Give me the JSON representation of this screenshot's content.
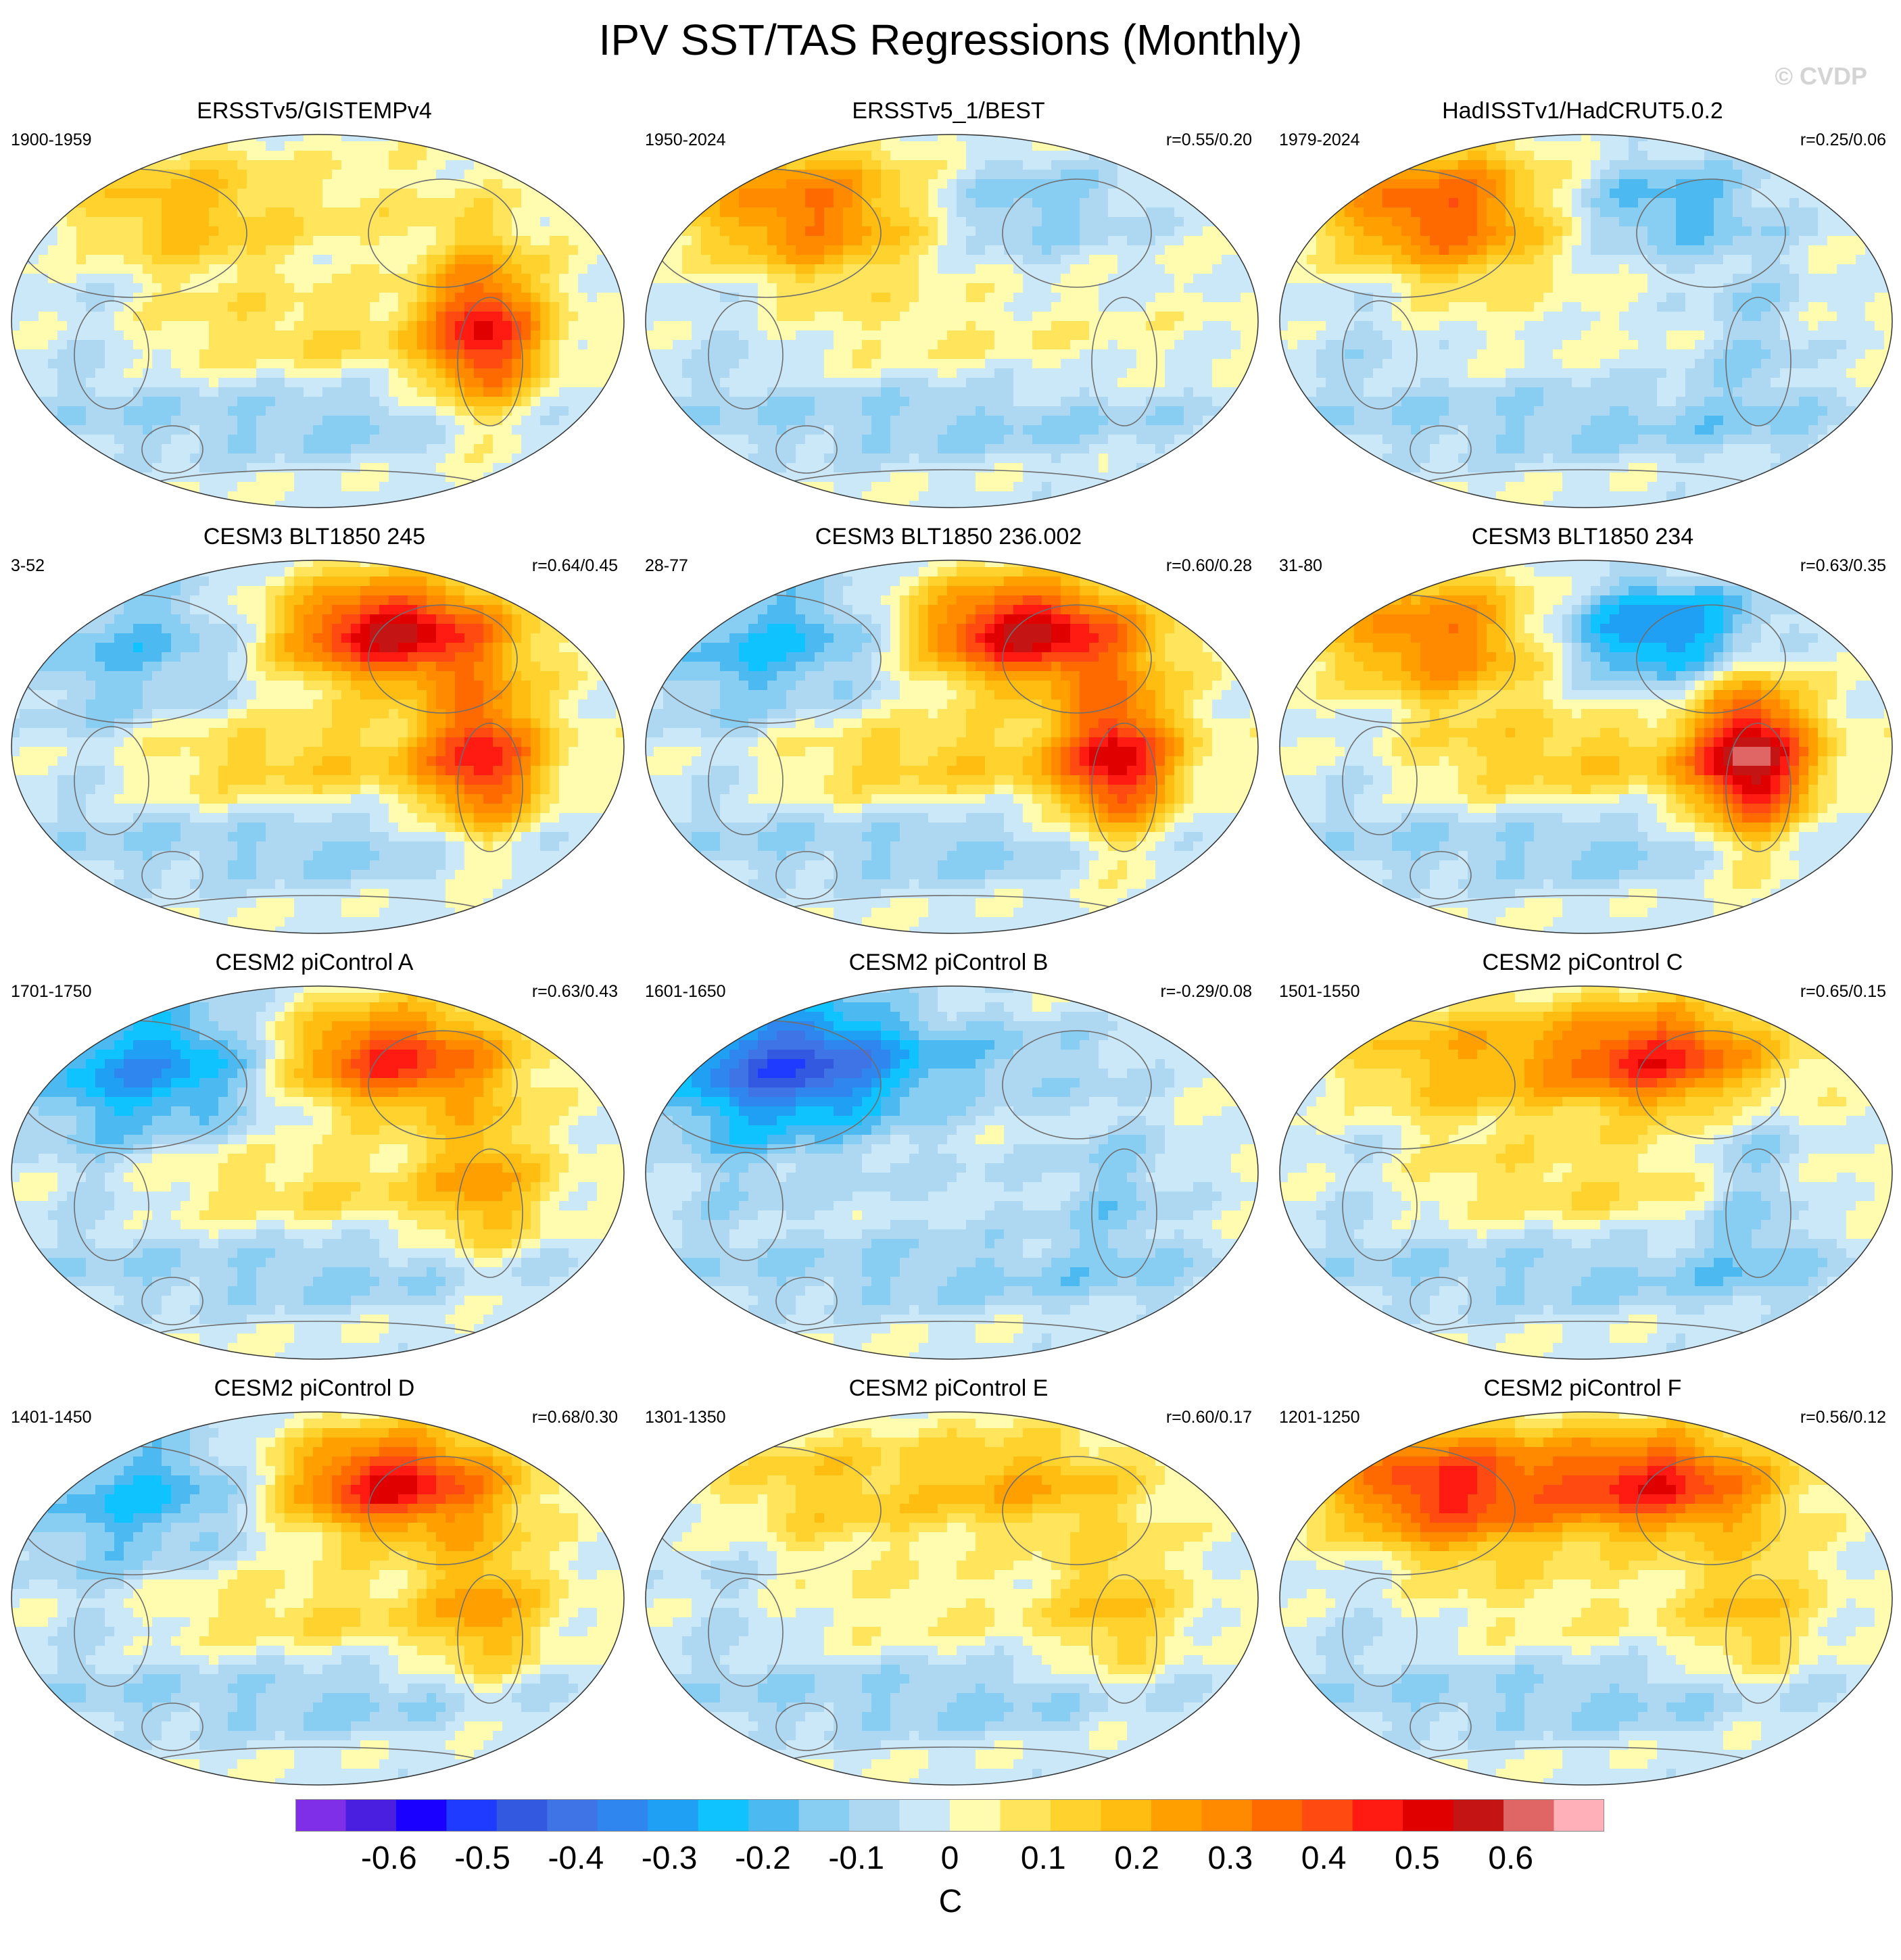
{
  "title": "IPV SST/TAS Regressions (Monthly)",
  "watermark": "© CVDP",
  "colorbar": {
    "units": "C",
    "tick_labels": [
      "-0.6",
      "-0.5",
      "-0.4",
      "-0.3",
      "-0.2",
      "-0.1",
      "0",
      "0.1",
      "0.2",
      "0.3",
      "0.4",
      "0.5",
      "0.6"
    ],
    "tick_values": [
      -0.6,
      -0.5,
      -0.4,
      -0.3,
      -0.2,
      -0.1,
      0,
      0.1,
      0.2,
      0.3,
      0.4,
      0.5,
      0.6
    ],
    "vmin": -0.7,
    "vmax": 0.7,
    "colors": [
      "#7f2fe8",
      "#4a1fe0",
      "#1a00ff",
      "#1f3bff",
      "#3359e0",
      "#3f74e6",
      "#2f86ef",
      "#1fa0f5",
      "#0ec3ff",
      "#4cbaf0",
      "#88cdf2",
      "#aed8f2",
      "#cbe8f8",
      "#fffcb0",
      "#ffe45c",
      "#ffd22e",
      "#ffbd12",
      "#ffa000",
      "#ff8a00",
      "#ff6a00",
      "#ff4a12",
      "#ff1a12",
      "#e00000",
      "#c41414",
      "#e06666",
      "#ffb0b8"
    ]
  },
  "chart_data": [
    {
      "type": "heatmap",
      "title": "ERSSTv5/GISTEMPv4",
      "period": "1900-1959",
      "correlation": "",
      "pattern": [
        0.1,
        0.2,
        0.05,
        0.45
      ]
    },
    {
      "type": "heatmap",
      "title": "ERSSTv5_1/BEST",
      "period": "1950-2024",
      "correlation": "r=0.55/0.20",
      "pattern": [
        0.05,
        0.35,
        -0.15,
        0.0
      ]
    },
    {
      "type": "heatmap",
      "title": "HadISSTv1/HadCRUT5.0.2",
      "period": "1979-2024",
      "correlation": "r=0.25/0.06",
      "pattern": [
        0.0,
        0.4,
        -0.2,
        -0.1
      ]
    },
    {
      "type": "heatmap",
      "title": "CESM3 BLT1850 245",
      "period": "3-52",
      "correlation": "r=0.64/0.45",
      "pattern": [
        0.15,
        -0.15,
        0.55,
        0.4
      ]
    },
    {
      "type": "heatmap",
      "title": "CESM3 BLT1850 236.002",
      "period": "28-77",
      "correlation": "r=0.60/0.28",
      "pattern": [
        0.15,
        -0.2,
        0.55,
        0.45
      ]
    },
    {
      "type": "heatmap",
      "title": "CESM3 BLT1850 234",
      "period": "31-80",
      "correlation": "r=0.63/0.35",
      "pattern": [
        0.15,
        0.35,
        -0.35,
        0.55
      ]
    },
    {
      "type": "heatmap",
      "title": "CESM2 piControl A",
      "period": "1701-1750",
      "correlation": "r=0.63/0.43",
      "pattern": [
        0.1,
        -0.3,
        0.45,
        0.2
      ]
    },
    {
      "type": "heatmap",
      "title": "CESM2 piControl B",
      "period": "1601-1650",
      "correlation": "r=-0.29/0.08",
      "pattern": [
        -0.05,
        -0.45,
        -0.1,
        -0.1
      ]
    },
    {
      "type": "heatmap",
      "title": "CESM2 piControl C",
      "period": "1501-1550",
      "correlation": "r=0.65/0.15",
      "pattern": [
        0.1,
        0.2,
        0.45,
        -0.15
      ]
    },
    {
      "type": "heatmap",
      "title": "CESM2 piControl D",
      "period": "1401-1450",
      "correlation": "r=0.68/0.30",
      "pattern": [
        0.1,
        -0.2,
        0.5,
        0.2
      ]
    },
    {
      "type": "heatmap",
      "title": "CESM2 piControl E",
      "period": "1301-1350",
      "correlation": "r=0.60/0.17",
      "pattern": [
        0.05,
        0.15,
        0.2,
        0.15
      ]
    },
    {
      "type": "heatmap",
      "title": "CESM2 piControl F",
      "period": "1201-1250",
      "correlation": "r=0.56/0.12",
      "pattern": [
        0.05,
        0.45,
        0.45,
        0.15
      ]
    }
  ]
}
